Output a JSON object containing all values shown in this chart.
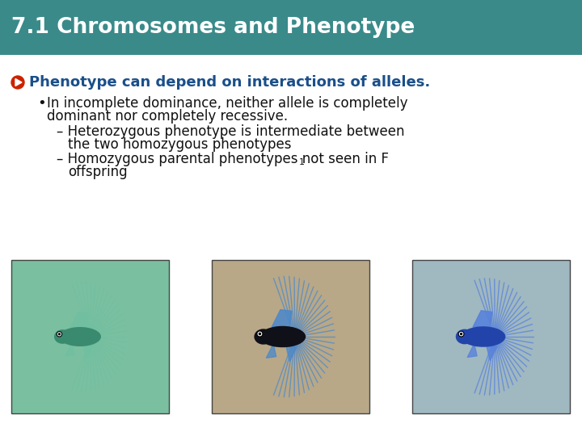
{
  "title": "7.1 Chromosomes and Phenotype",
  "title_bg_color": "#3A8A8A",
  "title_text_color": "#FFFFFF",
  "slide_bg_color": "#FFFFFF",
  "bullet_icon_color": "#CC2200",
  "bullet1_text": "Phenotype can depend on interactions of alleles.",
  "bullet1_color": "#1a4f8a",
  "body_text_color": "#111111",
  "sub_line1": "In incomplete dominance, neither allele is completely",
  "sub_line2": "dominant nor completely recessive.",
  "dash1_line1": "Heterozygous phenotype is intermediate between",
  "dash1_line2": "the two homozygous phenotypes",
  "dash2_line1": "Homozygous parental phenotypes not seen in F",
  "dash2_sub": "1",
  "dash2_line2": "offspring",
  "title_font_size": 19,
  "bullet1_font_size": 13,
  "body_font_size": 12,
  "img_bg1": "#7ABFA0",
  "img_bg2": "#B8A888",
  "img_bg3": "#A0B8C0",
  "fish1_body": "#3A8A70",
  "fish1_fin": "#70C0A0",
  "fish2_body": "#101018",
  "fish2_fin": "#4A88CC",
  "fish3_body": "#2244AA",
  "fish3_fin": "#5580DD"
}
